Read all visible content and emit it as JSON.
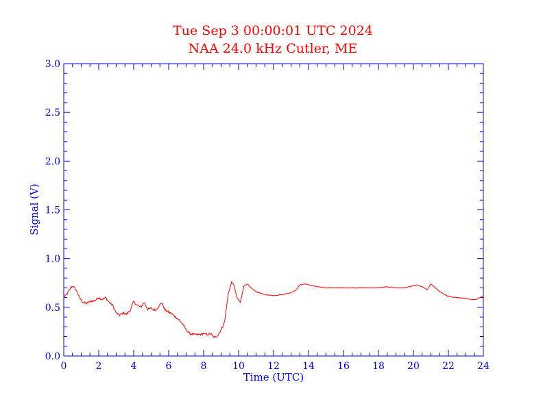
{
  "colors": {
    "axis": "#0000ff",
    "data": "#ff0000",
    "title": "#ff0000",
    "background": "#ffffff"
  },
  "chart_data": {
    "type": "line",
    "title": "Tue Sep 3 00:00:01 UTC 2024",
    "subtitle": "NAA 24.0 kHz Cutler, ME",
    "xlabel": "Time (UTC)",
    "ylabel": "Signal (V)",
    "xlim": [
      0,
      24
    ],
    "ylim": [
      0,
      3.0
    ],
    "xticks": [
      0,
      2,
      4,
      6,
      8,
      10,
      12,
      14,
      16,
      18,
      20,
      22,
      24
    ],
    "yticks": [
      "0.0",
      "0.5",
      "1.0",
      "1.5",
      "2.0",
      "2.5",
      "3.0"
    ],
    "grid": false,
    "series": [
      {
        "x": [
          0.0,
          0.2,
          0.4,
          0.5,
          0.7,
          0.9,
          1.1,
          1.3,
          1.5,
          1.8,
          2.0,
          2.2,
          2.4,
          2.6,
          2.8,
          3.0,
          3.2,
          3.4,
          3.6,
          3.8,
          4.0,
          4.2,
          4.4,
          4.6,
          4.8,
          5.0,
          5.2,
          5.4,
          5.6,
          5.8,
          6.0,
          6.2,
          6.4,
          6.6,
          6.8,
          7.0,
          7.2,
          7.5,
          7.8,
          8.0,
          8.2,
          8.4,
          8.6,
          8.8,
          9.0,
          9.2,
          9.4,
          9.6,
          9.75,
          9.9,
          10.1,
          10.3,
          10.5,
          10.7,
          11.0,
          11.5,
          12.0,
          12.5,
          13.0,
          13.3,
          13.5,
          13.8,
          14.0,
          14.5,
          15.0,
          16.0,
          17.0,
          18.0,
          18.5,
          19.0,
          19.5,
          20.0,
          20.2,
          20.5,
          20.8,
          21.0,
          21.2,
          21.5,
          21.8,
          22.0,
          22.5,
          23.0,
          23.3,
          23.6,
          23.8,
          24.0
        ],
        "y": [
          0.6,
          0.64,
          0.7,
          0.72,
          0.68,
          0.6,
          0.55,
          0.54,
          0.56,
          0.57,
          0.6,
          0.58,
          0.6,
          0.55,
          0.52,
          0.44,
          0.42,
          0.44,
          0.43,
          0.47,
          0.56,
          0.52,
          0.5,
          0.55,
          0.48,
          0.49,
          0.47,
          0.5,
          0.55,
          0.47,
          0.45,
          0.43,
          0.4,
          0.37,
          0.33,
          0.27,
          0.23,
          0.22,
          0.22,
          0.23,
          0.22,
          0.23,
          0.19,
          0.21,
          0.27,
          0.35,
          0.63,
          0.76,
          0.72,
          0.6,
          0.55,
          0.72,
          0.74,
          0.7,
          0.66,
          0.63,
          0.62,
          0.63,
          0.65,
          0.68,
          0.73,
          0.74,
          0.73,
          0.71,
          0.7,
          0.7,
          0.7,
          0.7,
          0.71,
          0.7,
          0.7,
          0.72,
          0.73,
          0.71,
          0.68,
          0.74,
          0.71,
          0.66,
          0.63,
          0.61,
          0.6,
          0.59,
          0.58,
          0.58,
          0.6,
          0.62
        ]
      }
    ]
  }
}
